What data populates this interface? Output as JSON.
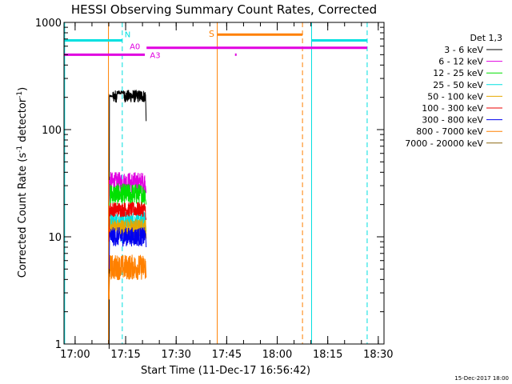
{
  "chart_data": {
    "type": "line",
    "title": "HESSI Observing Summary Count Rates, Corrected",
    "xlabel": "Start Time (11-Dec-17 16:56:42)",
    "ylabel_main": "Corrected Count Rate (s",
    "ylabel_sup1": "-1",
    "ylabel_mid": " detector",
    "ylabel_sup2": "-1",
    "ylabel_end": ")",
    "yscale": "log",
    "x_unit": "minutes after 16:56:42",
    "xlim": [
      0,
      95
    ],
    "ylim": [
      1,
      1000
    ],
    "x_ticks": [
      {
        "label": "17:00",
        "value": 3.3
      },
      {
        "label": "17:15",
        "value": 18.3
      },
      {
        "label": "17:30",
        "value": 33.3
      },
      {
        "label": "17:45",
        "value": 48.3
      },
      {
        "label": "18:00",
        "value": 63.3
      },
      {
        "label": "18:15",
        "value": 78.3
      },
      {
        "label": "18:30",
        "value": 93.3
      }
    ],
    "y_ticks": [
      {
        "label": "1",
        "value": 1
      },
      {
        "label": "10",
        "value": 10
      },
      {
        "label": "100",
        "value": 100
      },
      {
        "label": "1000",
        "value": 1000
      }
    ],
    "legend_title": "Det 1,3",
    "legend_placement": "top-right outside",
    "series": [
      {
        "name": "3 - 6 keV",
        "color": "#000000",
        "level": 205,
        "noise": 0.06,
        "spike": 225,
        "fall": 120
      },
      {
        "name": "6 - 12 keV",
        "color": "#e000e0",
        "level": 32,
        "noise": 0.1
      },
      {
        "name": "12 - 25 keV",
        "color": "#00e000",
        "level": 25,
        "noise": 0.1
      },
      {
        "name": "25 - 50 keV",
        "color": "#00e0e0",
        "level": 14,
        "noise": 0.09
      },
      {
        "name": "50 - 100 keV",
        "color": "#e6a800",
        "level": 12,
        "noise": 0.09
      },
      {
        "name": "100 - 300 keV",
        "color": "#ee0000",
        "level": 18,
        "noise": 0.07
      },
      {
        "name": "300 - 800 keV",
        "color": "#0000ee",
        "level": 10,
        "noise": 0.09
      },
      {
        "name": "800 - 7000 keV",
        "color": "#ff8000",
        "level": 5.2,
        "noise": 0.12
      },
      {
        "name": "7000 - 20000 keV",
        "color": "#8b6914",
        "level": 0,
        "noise": 0
      }
    ],
    "data_window": {
      "start": 13.2,
      "end": 24.5
    },
    "annotations": {
      "N": "N",
      "A0": "A0",
      "A3": "A3",
      "S": "S"
    },
    "state_bars": {
      "night": {
        "color": "#00e0e0",
        "y": 680,
        "segments": [
          [
            0,
            17.3
          ],
          [
            73.5,
            90
          ]
        ],
        "text_at": 18.0
      },
      "attenuator_a0": {
        "color": "#e000e0",
        "y": 580,
        "segments": [
          [
            24.5,
            90
          ]
        ],
        "text_at": 19.5
      },
      "attenuator_a3": {
        "color": "#e000e0",
        "y": 500,
        "segments": [
          [
            0,
            24.0
          ]
        ],
        "text_at": 25.5,
        "dot_at": 51.0
      },
      "saa": {
        "color": "#ff8000",
        "y": 770,
        "segments": [
          [
            45.5,
            70.8
          ]
        ],
        "text_at": 43.0
      }
    },
    "vertical_markers": [
      {
        "x": 0.2,
        "color": "#00e0e0",
        "style": "solid"
      },
      {
        "x": 17.3,
        "color": "#00e0e0",
        "style": "dashed"
      },
      {
        "x": 73.5,
        "color": "#00e0e0",
        "style": "solid"
      },
      {
        "x": 90.0,
        "color": "#00e0e0",
        "style": "dashed"
      },
      {
        "x": 13.2,
        "color": "#ff8000",
        "style": "solid"
      },
      {
        "x": 45.5,
        "color": "#ff8000",
        "style": "solid"
      },
      {
        "x": 70.8,
        "color": "#ff8000",
        "style": "dashed"
      }
    ]
  },
  "footer": {
    "timestamp": "15-Dec-2017 18:00"
  }
}
